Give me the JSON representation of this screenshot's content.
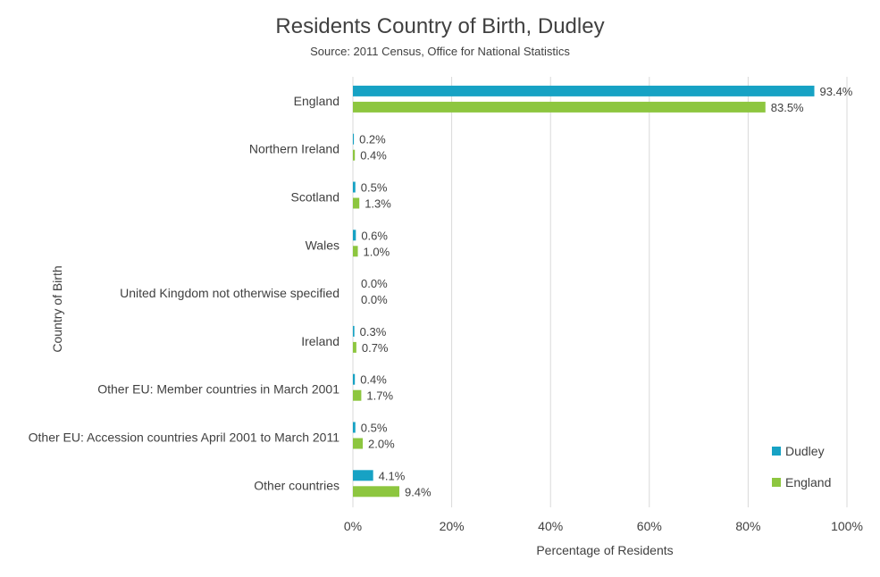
{
  "chart_data": {
    "type": "bar",
    "orientation": "horizontal",
    "title": "Residents Country of Birth, Dudley",
    "subtitle": "Source: 2011 Census, Office for National Statistics",
    "xlabel": "Percentage of Residents",
    "ylabel": "Country of Birth",
    "xlim": [
      0,
      100
    ],
    "xticks": [
      0,
      20,
      40,
      60,
      80,
      100
    ],
    "xtick_labels": [
      "0%",
      "20%",
      "40%",
      "60%",
      "80%",
      "100%"
    ],
    "grid": "vertical",
    "legend_position": "bottom-right",
    "categories": [
      "England",
      "Northern Ireland",
      "Scotland",
      "Wales",
      "United Kingdom not otherwise specified",
      "Ireland",
      "Other EU: Member countries in March 2001",
      "Other EU: Accession countries April 2001 to March 2011",
      "Other countries"
    ],
    "series": [
      {
        "name": "Dudley",
        "color": "#17a2c4",
        "values": [
          93.4,
          0.2,
          0.5,
          0.6,
          0.0,
          0.3,
          0.4,
          0.5,
          4.1
        ],
        "labels": [
          "93.4%",
          "0.2%",
          "0.5%",
          "0.6%",
          "0.0%",
          "0.3%",
          "0.4%",
          "0.5%",
          "4.1%"
        ]
      },
      {
        "name": "England",
        "color": "#8dc63f",
        "values": [
          83.5,
          0.4,
          1.3,
          1.0,
          0.0,
          0.7,
          1.7,
          2.0,
          9.4
        ],
        "labels": [
          "83.5%",
          "0.4%",
          "1.3%",
          "1.0%",
          "0.0%",
          "0.7%",
          "1.7%",
          "2.0%",
          "9.4%"
        ]
      }
    ]
  }
}
